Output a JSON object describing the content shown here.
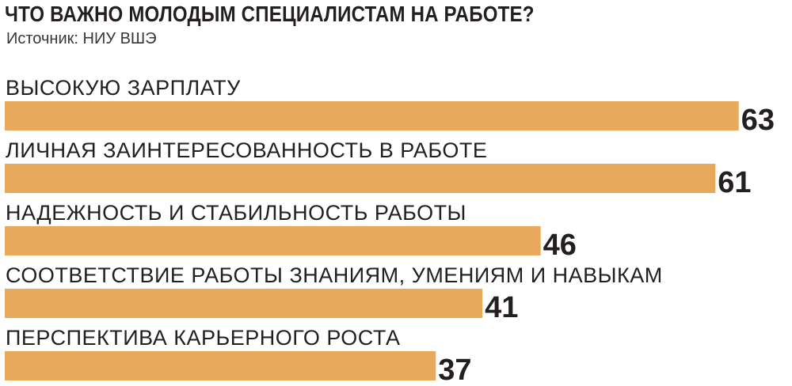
{
  "header": {
    "title": "ЧТО ВАЖНО МОЛОДЫМ СПЕЦИАЛИСТАМ НА РАБОТЕ?",
    "source": "Источник: НИУ ВШЭ"
  },
  "colors": {
    "bar": "#e8a95c",
    "text": "#231f20"
  },
  "chart_data": {
    "type": "bar",
    "orientation": "horizontal",
    "title": "ЧТО ВАЖНО МОЛОДЫМ СПЕЦИАЛИСТАМ НА РАБОТЕ?",
    "subtitle": "Источник: НИУ ВШЭ",
    "categories": [
      "ВЫСОКУЮ ЗАРПЛАТУ",
      "ЛИЧНАЯ ЗАИНТЕРЕСОВАННОСТЬ В РАБОТЕ",
      "НАДЕЖНОСТЬ И СТАБИЛЬНОСТЬ РАБОТЫ",
      "СООТВЕТСТВИЕ РАБОТЫ ЗНАНИЯМ, УМЕНИЯМ И НАВЫКАМ",
      "ПЕРСПЕКТИВА КАРЬЕРНОГО РОСТА"
    ],
    "values": [
      63,
      61,
      46,
      41,
      37
    ],
    "xlabel": "",
    "ylabel": "",
    "grid": false,
    "legend": "none"
  }
}
